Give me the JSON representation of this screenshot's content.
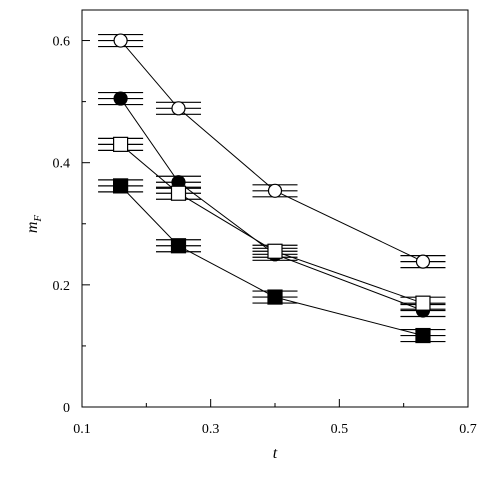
{
  "chart_data": {
    "type": "scatter",
    "xlabel": "t",
    "ylabel": {
      "main": "m",
      "sub": "F"
    },
    "xlim": [
      0.1,
      0.7
    ],
    "ylim": [
      0,
      0.65
    ],
    "xticks": [
      0.1,
      0.3,
      0.5,
      0.7
    ],
    "xticks_minor": [
      0.2,
      0.4,
      0.6
    ],
    "xtick_labels": [
      "0.1",
      "0.3",
      "0.5",
      "0.7"
    ],
    "yticks": [
      0,
      0.2,
      0.4,
      0.6
    ],
    "yticks_minor": [
      0.1,
      0.3,
      0.5
    ],
    "ytick_labels": [
      "0",
      "0.2",
      "0.4",
      "0.6"
    ],
    "grid": false,
    "legend": "none",
    "errorbars": "horizontal",
    "series": [
      {
        "marker": "open-circle",
        "points": [
          {
            "x": 0.16,
            "y": 0.6,
            "err": 0.035
          },
          {
            "x": 0.25,
            "y": 0.489,
            "err": 0.035
          },
          {
            "x": 0.4,
            "y": 0.354,
            "err": 0.035
          },
          {
            "x": 0.63,
            "y": 0.238,
            "err": 0.035
          }
        ]
      },
      {
        "marker": "filled-circle",
        "points": [
          {
            "x": 0.16,
            "y": 0.505,
            "err": 0.035
          },
          {
            "x": 0.25,
            "y": 0.368,
            "err": 0.035
          },
          {
            "x": 0.4,
            "y": 0.25,
            "err": 0.035
          },
          {
            "x": 0.63,
            "y": 0.158,
            "err": 0.035
          }
        ]
      },
      {
        "marker": "open-square",
        "points": [
          {
            "x": 0.16,
            "y": 0.43,
            "err": 0.035
          },
          {
            "x": 0.25,
            "y": 0.35,
            "err": 0.035
          },
          {
            "x": 0.4,
            "y": 0.255,
            "err": 0.035
          },
          {
            "x": 0.63,
            "y": 0.17,
            "err": 0.035
          }
        ]
      },
      {
        "marker": "filled-square",
        "points": [
          {
            "x": 0.16,
            "y": 0.362,
            "err": 0.035
          },
          {
            "x": 0.25,
            "y": 0.264,
            "err": 0.035
          },
          {
            "x": 0.4,
            "y": 0.18,
            "err": 0.035
          },
          {
            "x": 0.63,
            "y": 0.117,
            "err": 0.035
          }
        ]
      }
    ]
  }
}
